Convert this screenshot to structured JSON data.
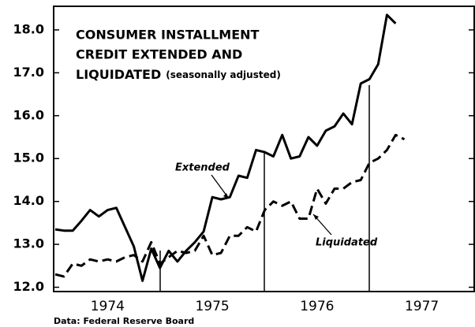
{
  "chart_data": {
    "type": "line",
    "title_lines": [
      "CONSUMER INSTALLMENT",
      "CREDIT EXTENDED AND",
      "LIQUIDATED"
    ],
    "subtitle": "(seasonally adjusted)",
    "source": "Data:  Federal Reserve Board",
    "annotations": [
      "Extended",
      "Liquidated"
    ],
    "x": [
      1974.0,
      1974.083,
      1974.167,
      1974.25,
      1974.333,
      1974.417,
      1974.5,
      1974.583,
      1974.667,
      1974.75,
      1974.833,
      1974.917,
      1975.0,
      1975.083,
      1975.167,
      1975.25,
      1975.333,
      1975.417,
      1975.5,
      1975.583,
      1975.667,
      1975.75,
      1975.833,
      1975.917,
      1976.0,
      1976.083,
      1976.167,
      1976.25,
      1976.333,
      1976.417,
      1976.5,
      1976.583,
      1976.667,
      1976.75,
      1976.833,
      1976.917,
      1977.0,
      1977.083,
      1977.167,
      1977.25,
      1977.333
    ],
    "series": [
      {
        "name": "Extended",
        "color": "#000000",
        "dash": false,
        "values": [
          13.35,
          13.32,
          13.32,
          13.55,
          13.8,
          13.65,
          13.8,
          13.85,
          13.4,
          12.95,
          12.15,
          12.9,
          12.45,
          12.85,
          12.6,
          12.85,
          13.05,
          13.3,
          14.1,
          14.05,
          14.1,
          14.6,
          14.55,
          15.2,
          15.15,
          15.05,
          15.55,
          15.0,
          15.05,
          15.5,
          15.3,
          15.65,
          15.75,
          16.05,
          15.8,
          16.75,
          16.85,
          17.2,
          18.35,
          18.15,
          null
        ]
      },
      {
        "name": "Liquidated",
        "color": "#000000",
        "dash": true,
        "values": [
          12.3,
          12.25,
          12.55,
          12.5,
          12.65,
          12.6,
          12.65,
          12.6,
          12.7,
          12.75,
          12.6,
          13.05,
          12.55,
          12.7,
          12.85,
          12.8,
          12.85,
          13.2,
          12.75,
          12.8,
          13.2,
          13.2,
          13.4,
          13.3,
          13.8,
          14.0,
          13.9,
          14.0,
          13.6,
          13.6,
          14.3,
          13.95,
          14.3,
          14.3,
          14.45,
          14.5,
          14.9,
          15.0,
          15.2,
          15.55,
          15.45
        ]
      }
    ],
    "xlim": [
      1973.985,
      1978.0
    ],
    "xticks": [
      {
        "value": 1974.5,
        "label": "1974"
      },
      {
        "value": 1975.5,
        "label": "1975"
      },
      {
        "value": 1976.5,
        "label": "1976"
      },
      {
        "value": 1977.5,
        "label": "1977"
      }
    ],
    "ylim": [
      11.9,
      18.55
    ],
    "yticks": [
      {
        "value": 12,
        "label": "12.0"
      },
      {
        "value": 13,
        "label": "13.0"
      },
      {
        "value": 14,
        "label": "14.0"
      },
      {
        "value": 15,
        "label": "15.0"
      },
      {
        "value": 16,
        "label": "16.0"
      },
      {
        "value": 17,
        "label": "17.0"
      },
      {
        "value": 18,
        "label": "18.0"
      }
    ],
    "grid": false
  }
}
